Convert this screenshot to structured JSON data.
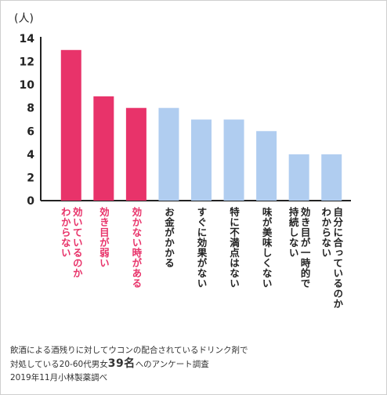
{
  "chart_data": {
    "type": "bar",
    "unit_label": "(人)",
    "y_ticks": [
      "14",
      "12",
      "10",
      "8",
      "6",
      "4",
      "2",
      "0"
    ],
    "ylim": [
      0,
      14
    ],
    "categories": [
      "効いているのかわからない",
      "効き目が弱い",
      "効かない時がある",
      "お金がかかる",
      "すぐに効果がない",
      "特に不満点はない",
      "味が美味しくない",
      "効き目が一時的で持続しない",
      "自分に合っているのかわからない"
    ],
    "category_lines": [
      [
        "効いているのか",
        "わからない"
      ],
      [
        "効き目が弱い"
      ],
      [
        "効かない時がある"
      ],
      [
        "お金がかかる"
      ],
      [
        "すぐに効果がない"
      ],
      [
        "特に不満点はない"
      ],
      [
        "味が美味しくない"
      ],
      [
        "効き目が一時的で",
        "持続しない"
      ],
      [
        "自分に合っているのか",
        "わからない"
      ]
    ],
    "values": [
      13,
      9,
      8,
      8,
      7,
      7,
      6,
      4,
      4
    ],
    "highlight_count": 3,
    "colors": {
      "highlight": "#e8336a",
      "normal": "#b0cdf0"
    },
    "grid": false
  },
  "note": {
    "line1": "飲酒による酒残りに対してウコンの配合されているドリンク剤で",
    "line2_prefix": "対処している20-60代男女",
    "line2_count": "39名",
    "line2_suffix": "へのアンケート調査",
    "line3": "2019年11月小林製薬調べ"
  }
}
